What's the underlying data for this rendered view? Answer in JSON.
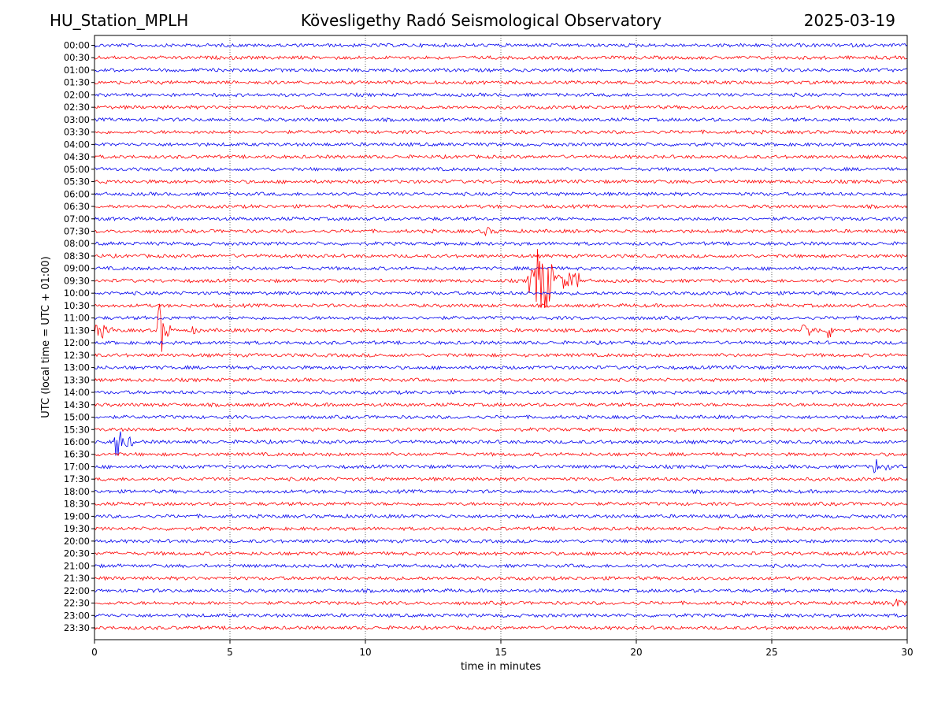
{
  "header": {
    "station": "HU_Station_MPLH",
    "observatory": "Kövesligethy Radó Seismological Observatory",
    "date": "2025-03-19"
  },
  "chart_data": {
    "type": "line",
    "title": "Kövesligethy Radó Seismological Observatory",
    "xlabel": "time in minutes",
    "ylabel": "UTC (local time = UTC + 01:00)",
    "xlim": [
      0,
      30
    ],
    "x_ticks": [
      0,
      5,
      10,
      15,
      20,
      25,
      30
    ],
    "grid": "vertical dotted lines at x ticks",
    "colors": {
      "even_hour_trace": "#0000ee",
      "half_hour_trace": "#ff0000",
      "grid": "#000000"
    },
    "rows": [
      "00:00",
      "00:30",
      "01:00",
      "01:30",
      "02:00",
      "02:30",
      "03:00",
      "03:30",
      "04:00",
      "04:30",
      "05:00",
      "05:30",
      "06:00",
      "06:30",
      "07:00",
      "07:30",
      "08:00",
      "08:30",
      "09:00",
      "09:30",
      "10:00",
      "10:30",
      "11:00",
      "11:30",
      "12:00",
      "12:30",
      "13:00",
      "13:30",
      "14:00",
      "14:30",
      "15:00",
      "15:30",
      "16:00",
      "16:30",
      "17:00",
      "17:30",
      "18:00",
      "18:30",
      "19:00",
      "19:30",
      "20:00",
      "20:30",
      "21:00",
      "21:30",
      "22:00",
      "22:30",
      "23:00",
      "23:30"
    ],
    "events": [
      {
        "row": "07:30",
        "start_min": 14.3,
        "end_min": 14.9,
        "amplitude": 0.4
      },
      {
        "row": "09:30",
        "start_min": 16.0,
        "end_min": 17.9,
        "amplitude": 3.6
      },
      {
        "row": "11:30",
        "start_min": 0.0,
        "end_min": 0.7,
        "amplitude": 1.1
      },
      {
        "row": "11:30",
        "start_min": 2.3,
        "end_min": 2.8,
        "amplitude": 3.0
      },
      {
        "row": "11:30",
        "start_min": 3.6,
        "end_min": 3.9,
        "amplitude": 0.4
      },
      {
        "row": "11:30",
        "start_min": 26.1,
        "end_min": 26.8,
        "amplitude": 0.8
      },
      {
        "row": "11:30",
        "start_min": 27.0,
        "end_min": 27.5,
        "amplitude": 0.9
      },
      {
        "row": "16:00",
        "start_min": 0.7,
        "end_min": 1.4,
        "amplitude": 1.8
      },
      {
        "row": "17:00",
        "start_min": 28.7,
        "end_min": 29.4,
        "amplitude": 0.8
      },
      {
        "row": "22:30",
        "start_min": 29.4,
        "end_min": 30.0,
        "amplitude": 0.5
      }
    ]
  }
}
